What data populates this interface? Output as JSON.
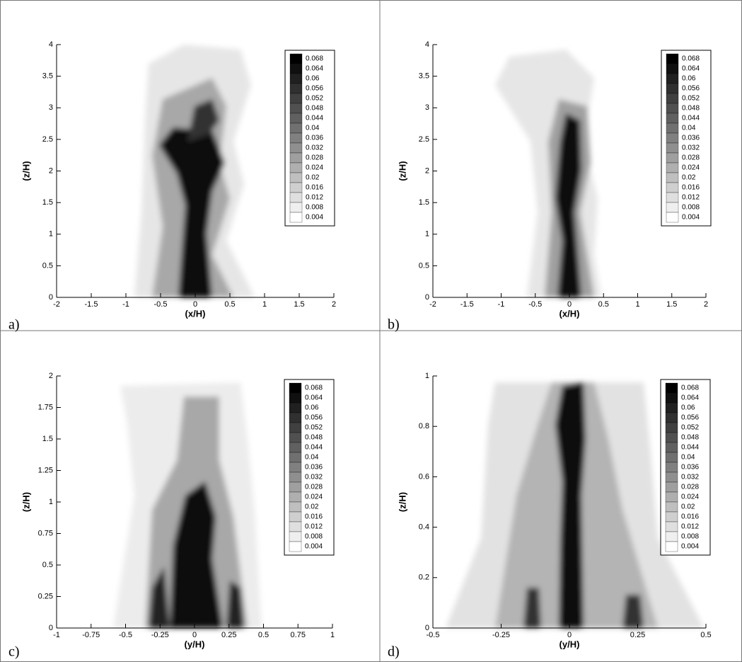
{
  "chart_data": [
    {
      "type": "contour",
      "panel_label": "a)",
      "xlabel": "(x/H)",
      "ylabel": "(z/H)",
      "xlim": [
        -2,
        2
      ],
      "ylim": [
        0,
        4
      ],
      "xticks": [
        -2,
        -1.5,
        -1,
        -0.5,
        0,
        0.5,
        1,
        1.5,
        2
      ],
      "yticks": [
        0,
        0.5,
        1,
        1.5,
        2,
        2.5,
        3,
        3.5,
        4
      ],
      "colorbar": {
        "levels": [
          0.068,
          0.064,
          0.06,
          0.056,
          0.052,
          0.048,
          0.044,
          0.04,
          0.036,
          0.032,
          0.028,
          0.024,
          0.02,
          0.016,
          0.012,
          0.008,
          0.004
        ],
        "colors": [
          "#000000",
          "#101010",
          "#202020",
          "#303030",
          "#404040",
          "#505050",
          "#606060",
          "#707070",
          "#808080",
          "#8f8f8f",
          "#9f9f9f",
          "#afafaf",
          "#bfbfbf",
          "#cfcfcf",
          "#dfdfdf",
          "#efefef",
          "#ffffff"
        ]
      }
    },
    {
      "type": "contour",
      "panel_label": "b)",
      "xlabel": "(x/H)",
      "ylabel": "(z/H)",
      "xlim": [
        -2,
        2
      ],
      "ylim": [
        0,
        4
      ],
      "xticks": [
        -2,
        -1.5,
        -1,
        -0.5,
        0,
        0.5,
        1,
        1.5,
        2
      ],
      "yticks": [
        0,
        0.5,
        1,
        1.5,
        2,
        2.5,
        3,
        3.5,
        4
      ],
      "colorbar": {
        "levels": [
          0.068,
          0.064,
          0.06,
          0.056,
          0.052,
          0.048,
          0.044,
          0.04,
          0.036,
          0.032,
          0.028,
          0.024,
          0.02,
          0.016,
          0.012,
          0.008,
          0.004
        ],
        "colors": [
          "#000000",
          "#101010",
          "#202020",
          "#303030",
          "#404040",
          "#505050",
          "#606060",
          "#707070",
          "#808080",
          "#8f8f8f",
          "#9f9f9f",
          "#afafaf",
          "#bfbfbf",
          "#cfcfcf",
          "#dfdfdf",
          "#efefef",
          "#ffffff"
        ]
      }
    },
    {
      "type": "contour",
      "panel_label": "c)",
      "xlabel": "(y/H)",
      "ylabel": "(z/H)",
      "xlim": [
        -1,
        1
      ],
      "ylim": [
        0,
        2
      ],
      "xticks": [
        -1,
        -0.75,
        -0.5,
        -0.25,
        0,
        0.25,
        0.5,
        0.75,
        1
      ],
      "yticks": [
        0,
        0.25,
        0.5,
        0.75,
        1,
        1.25,
        1.5,
        1.75,
        2
      ],
      "colorbar": {
        "levels": [
          0.068,
          0.064,
          0.06,
          0.056,
          0.052,
          0.048,
          0.044,
          0.04,
          0.036,
          0.032,
          0.028,
          0.024,
          0.02,
          0.016,
          0.012,
          0.008,
          0.004
        ],
        "colors": [
          "#000000",
          "#101010",
          "#202020",
          "#303030",
          "#404040",
          "#505050",
          "#606060",
          "#707070",
          "#808080",
          "#8f8f8f",
          "#9f9f9f",
          "#afafaf",
          "#bfbfbf",
          "#cfcfcf",
          "#dfdfdf",
          "#efefef",
          "#ffffff"
        ]
      }
    },
    {
      "type": "contour",
      "panel_label": "d)",
      "xlabel": "(y/H)",
      "ylabel": "(z/H)",
      "xlim": [
        -0.5,
        0.5
      ],
      "ylim": [
        0,
        1
      ],
      "xticks": [
        -0.5,
        -0.25,
        0,
        0.25,
        0.5
      ],
      "yticks": [
        0,
        0.2,
        0.4,
        0.6,
        0.8,
        1
      ],
      "colorbar": {
        "levels": [
          0.068,
          0.064,
          0.06,
          0.056,
          0.052,
          0.048,
          0.044,
          0.04,
          0.036,
          0.032,
          0.028,
          0.024,
          0.02,
          0.016,
          0.012,
          0.008,
          0.004
        ],
        "colors": [
          "#000000",
          "#101010",
          "#202020",
          "#303030",
          "#404040",
          "#505050",
          "#606060",
          "#707070",
          "#808080",
          "#8f8f8f",
          "#9f9f9f",
          "#afafaf",
          "#bfbfbf",
          "#cfcfcf",
          "#dfdfdf",
          "#efefef",
          "#ffffff"
        ]
      }
    }
  ]
}
